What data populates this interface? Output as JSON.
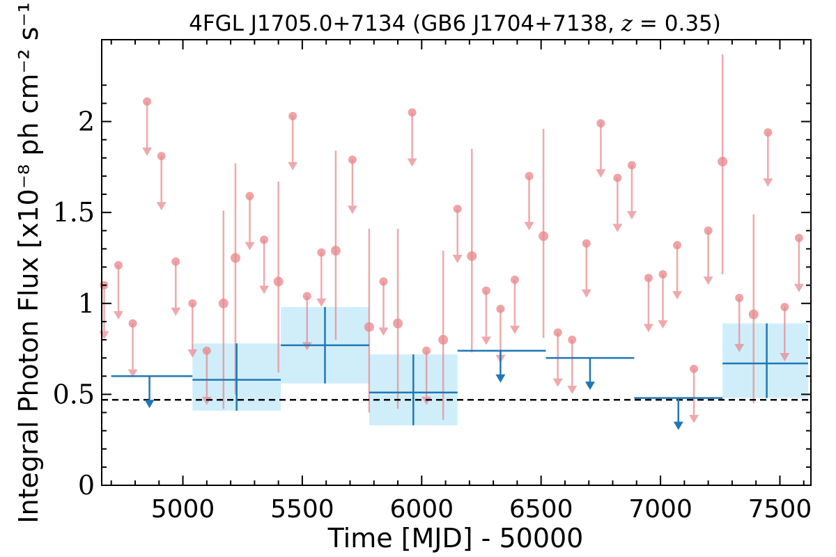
{
  "chart_data": {
    "type": "scatter",
    "title": "4FGL J1705.0+7134 (GB6 J1704+7138, z = 0.35)",
    "title_parts": {
      "prefix": "4FGL J1705.0+7134 (GB6 J1704+7138, ",
      "z_var": "z",
      "z_rest": " = 0.35)"
    },
    "xlabel": "Time [MJD] - 50000",
    "ylabel": "Integral Photon Flux [x10⁻⁸ ph cm⁻² s⁻¹]",
    "xlim": [
      4660,
      7630
    ],
    "ylim": [
      0,
      2.45
    ],
    "xticks": [
      5000,
      5500,
      6000,
      6500,
      7000,
      7500
    ],
    "yticks": [
      0,
      0.5,
      1,
      1.5,
      2
    ],
    "ytick_labels": [
      "0",
      "0.5",
      "1",
      "1.5",
      "2"
    ],
    "baseline": 0.47,
    "colors": {
      "short_bins": "#e8868a",
      "long_bins": "#1f77b4",
      "band": "#cfeefa",
      "baseline": "#000000"
    },
    "short_bin_upper_limits": [
      [
        4670,
        1.1
      ],
      [
        4730,
        1.21
      ],
      [
        4790,
        0.89
      ],
      [
        4850,
        2.11
      ],
      [
        4910,
        1.81
      ],
      [
        4970,
        1.23
      ],
      [
        5040,
        1.0
      ],
      [
        5100,
        0.74
      ],
      [
        5280,
        1.59
      ],
      [
        5340,
        1.35
      ],
      [
        5460,
        2.03
      ],
      [
        5520,
        1.04
      ],
      [
        5580,
        1.28
      ],
      [
        5710,
        1.79
      ],
      [
        5840,
        1.12
      ],
      [
        5960,
        2.05
      ],
      [
        6020,
        0.74
      ],
      [
        6150,
        1.52
      ],
      [
        6270,
        1.07
      ],
      [
        6330,
        0.97
      ],
      [
        6390,
        1.13
      ],
      [
        6450,
        1.7
      ],
      [
        6570,
        0.84
      ],
      [
        6630,
        0.8
      ],
      [
        6690,
        1.33
      ],
      [
        6750,
        1.99
      ],
      [
        6820,
        1.69
      ],
      [
        6880,
        1.76
      ],
      [
        6950,
        1.14
      ],
      [
        7010,
        1.16
      ],
      [
        7070,
        1.32
      ],
      [
        7140,
        0.64
      ],
      [
        7200,
        1.4
      ],
      [
        7330,
        1.03
      ],
      [
        7450,
        1.94
      ],
      [
        7520,
        0.98
      ],
      [
        7580,
        1.36
      ]
    ],
    "short_bin_detections": [
      {
        "x": 5170,
        "y": 1.0,
        "err_lo": 0.42,
        "err_hi": 1.51
      },
      {
        "x": 5220,
        "y": 1.25,
        "err_lo": 0.5,
        "err_hi": 1.77
      },
      {
        "x": 5400,
        "y": 1.12,
        "err_lo": 0.62,
        "err_hi": 1.67
      },
      {
        "x": 5640,
        "y": 1.29,
        "err_lo": 0.8,
        "err_hi": 1.84
      },
      {
        "x": 5780,
        "y": 0.87,
        "err_lo": 0.4,
        "err_hi": 1.41
      },
      {
        "x": 5900,
        "y": 0.89,
        "err_lo": 0.42,
        "err_hi": 1.41
      },
      {
        "x": 6090,
        "y": 0.8,
        "err_lo": 0.36,
        "err_hi": 1.29
      },
      {
        "x": 6210,
        "y": 1.26,
        "err_lo": 0.73,
        "err_hi": 1.85
      },
      {
        "x": 6510,
        "y": 1.37,
        "err_lo": 0.81,
        "err_hi": 1.96
      },
      {
        "x": 7260,
        "y": 1.78,
        "err_lo": 1.16,
        "err_hi": 2.37
      },
      {
        "x": 7390,
        "y": 0.94,
        "err_lo": 0.45,
        "err_hi": 1.49
      }
    ],
    "long_bins": [
      {
        "x_start": 4700,
        "x_end": 5040,
        "center": 4860,
        "y": 0.6,
        "upper_limit": true
      },
      {
        "x_start": 5040,
        "x_end": 5410,
        "center": 5225,
        "y": 0.58,
        "err_lo": 0.41,
        "err_hi": 0.78,
        "upper_limit": false
      },
      {
        "x_start": 5410,
        "x_end": 5780,
        "center": 5595,
        "y": 0.77,
        "err_lo": 0.56,
        "err_hi": 0.98,
        "upper_limit": false
      },
      {
        "x_start": 5780,
        "x_end": 6150,
        "center": 5965,
        "y": 0.51,
        "err_lo": 0.33,
        "err_hi": 0.72,
        "upper_limit": false
      },
      {
        "x_start": 6150,
        "x_end": 6520,
        "center": 6330,
        "y": 0.74,
        "upper_limit": true
      },
      {
        "x_start": 6520,
        "x_end": 6890,
        "center": 6705,
        "y": 0.7,
        "upper_limit": true
      },
      {
        "x_start": 6890,
        "x_end": 7260,
        "center": 7075,
        "y": 0.48,
        "upper_limit": true
      },
      {
        "x_start": 7260,
        "x_end": 7630,
        "center": 7445,
        "y": 0.67,
        "err_lo": 0.48,
        "err_hi": 0.89,
        "upper_limit": false
      }
    ]
  }
}
